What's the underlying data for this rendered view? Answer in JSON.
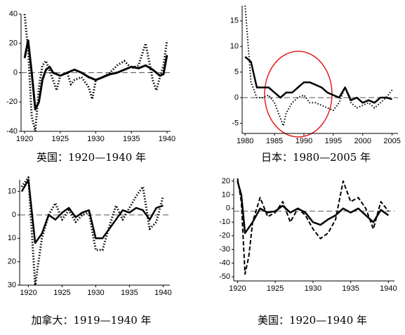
{
  "chart_data": [
    {
      "type": "line",
      "title": "英国：1920—1940 年",
      "xlim": [
        1919.5,
        1940.5
      ],
      "xticks": [
        1920,
        1925,
        1930,
        1935,
        1940
      ],
      "ylim": [
        -40,
        40
      ],
      "yticks": [
        40,
        20,
        0,
        -20,
        -40
      ],
      "hline": 0,
      "series": [
        {
          "color": "#000000",
          "style": "solid",
          "width": 3,
          "x": [
            1920,
            1920.5,
            1921,
            1921.5,
            1922,
            1922.5,
            1923,
            1923.5,
            1924,
            1925,
            1926,
            1927,
            1928,
            1929,
            1930,
            1931,
            1932,
            1933,
            1934,
            1935,
            1936,
            1937,
            1938,
            1939,
            1939.5,
            1940
          ],
          "values": [
            10,
            22,
            0,
            -25,
            -20,
            -5,
            2,
            4,
            0,
            -2,
            0,
            2,
            0,
            -3,
            -5,
            -3,
            -1,
            0,
            2,
            4,
            3,
            5,
            2,
            -2,
            -1,
            12
          ]
        },
        {
          "color": "#000000",
          "style": "dotted",
          "width": 3,
          "x": [
            1920,
            1920.5,
            1921,
            1921.5,
            1922,
            1922.5,
            1923,
            1924,
            1924.5,
            1925,
            1926,
            1926.5,
            1927,
            1928,
            1929,
            1929.5,
            1930,
            1931,
            1932,
            1933,
            1934,
            1935,
            1936,
            1937,
            1938,
            1938.5,
            1939,
            1939.5,
            1940
          ],
          "values": [
            40,
            15,
            -30,
            -40,
            -10,
            5,
            8,
            -5,
            -12,
            -2,
            0,
            -8,
            -5,
            -3,
            -10,
            -18,
            -5,
            -3,
            0,
            5,
            8,
            3,
            5,
            20,
            -5,
            -12,
            -3,
            5,
            22
          ]
        }
      ]
    },
    {
      "type": "line",
      "title": "日本：1980—2005 年",
      "xlim": [
        1979.5,
        2006
      ],
      "xticks": [
        1980,
        1985,
        1990,
        1995,
        2000,
        2005
      ],
      "ylim": [
        -7,
        18
      ],
      "yticks": [
        15,
        10,
        5,
        0,
        -5
      ],
      "hline": 0,
      "series": [
        {
          "color": "#000000",
          "style": "solid",
          "width": 2.5,
          "x": [
            1980,
            1981,
            1982,
            1983,
            1984,
            1985,
            1986,
            1987,
            1988,
            1989,
            1990,
            1991,
            1992,
            1993,
            1994,
            1995,
            1996,
            1997,
            1998,
            1999,
            2000,
            2001,
            2002,
            2003,
            2004,
            2005
          ],
          "values": [
            8,
            7,
            2,
            2,
            2,
            1,
            0,
            1,
            1,
            2,
            3,
            3,
            2.5,
            2,
            1,
            0.5,
            0,
            2,
            -0.5,
            0,
            -1,
            -0.5,
            -1,
            0,
            0,
            -0.3
          ]
        },
        {
          "color": "#000000",
          "style": "dotted",
          "width": 2,
          "x": [
            1980,
            1981,
            1982,
            1983,
            1984,
            1985,
            1986,
            1986.5,
            1987,
            1988,
            1989,
            1990,
            1991,
            1992,
            1993,
            1994,
            1995,
            1996,
            1997,
            1998,
            1999,
            2000,
            2001,
            2002,
            2003,
            2004,
            2005
          ],
          "values": [
            18,
            3,
            0,
            0,
            0.5,
            -1,
            -4,
            -5.5,
            -3,
            -1,
            0,
            0.5,
            -1,
            -1,
            -1.5,
            -2,
            -2.5,
            -1,
            2,
            -1,
            -2,
            -1.5,
            -1,
            -2,
            -1,
            0,
            1.5
          ]
        }
      ]
    },
    {
      "type": "line",
      "title": "加拿大：1919—1940 年",
      "xlim": [
        1918.7,
        1941
      ],
      "xticks": [
        1920,
        1925,
        1930,
        1935,
        1940
      ],
      "ylim": [
        -30,
        15
      ],
      "yticks": [
        10,
        0,
        {
          "value": -10,
          "label": "10"
        },
        {
          "value": -20,
          "label": "20"
        },
        {
          "value": -30,
          "label": "30"
        }
      ],
      "hline": 0,
      "series": [
        {
          "color": "#000000",
          "style": "solid",
          "width": 2.5,
          "x": [
            1919,
            1920,
            1921,
            1922,
            1923,
            1924,
            1925,
            1926,
            1927,
            1928,
            1929,
            1930,
            1931,
            1932,
            1933,
            1934,
            1935,
            1936,
            1937,
            1938,
            1939,
            1940
          ],
          "values": [
            10,
            15,
            -12,
            -8,
            0,
            -2,
            1,
            3,
            -1,
            1,
            2,
            -10,
            -10,
            -6,
            -2,
            2,
            1,
            3,
            2,
            -2,
            3,
            4
          ]
        },
        {
          "color": "#000000",
          "style": "dotted",
          "width": 3,
          "x": [
            1919,
            1920,
            1921,
            1922,
            1923,
            1924,
            1925,
            1926,
            1927,
            1928,
            1929,
            1930,
            1931,
            1932,
            1933,
            1934,
            1935,
            1936,
            1937,
            1938,
            1939,
            1940
          ],
          "values": [
            12,
            16,
            -30,
            -10,
            0,
            5,
            -2,
            2,
            -3,
            0,
            1,
            -15,
            -15,
            -5,
            4,
            -2,
            3,
            8,
            12,
            -6,
            -3,
            8
          ]
        }
      ]
    },
    {
      "type": "line",
      "title": "美国：1920—1940 年",
      "xlim": [
        1919.5,
        1940.8
      ],
      "xticks": [
        1920,
        1925,
        1930,
        1935,
        1940
      ],
      "ylim": [
        -53,
        22
      ],
      "yticks": [
        20,
        10,
        0,
        -10,
        -20,
        -30,
        -40,
        -50
      ],
      "hline": -2,
      "series": [
        {
          "color": "#000000",
          "style": "solid",
          "width": 2.5,
          "x": [
            1920,
            1920.5,
            1921,
            1922,
            1923,
            1924,
            1925,
            1926,
            1927,
            1928,
            1929,
            1930,
            1931,
            1932,
            1933,
            1934,
            1935,
            1936,
            1937,
            1938,
            1939,
            1940
          ],
          "values": [
            20,
            10,
            -18,
            -10,
            0,
            -3,
            -2,
            2,
            -3,
            0,
            -3,
            -10,
            -12,
            -8,
            -5,
            0,
            -3,
            0,
            -5,
            -10,
            -1,
            -5
          ]
        },
        {
          "color": "#000000",
          "style": "dashed",
          "width": 2,
          "x": [
            1920,
            1920.5,
            1921,
            1921.5,
            1922,
            1923,
            1924,
            1925,
            1926,
            1927,
            1928,
            1929,
            1930,
            1931,
            1932,
            1933,
            1934,
            1935,
            1936,
            1937,
            1938,
            1939,
            1940
          ],
          "values": [
            22,
            5,
            -48,
            -35,
            -10,
            8,
            -6,
            -3,
            5,
            -10,
            0,
            -5,
            -15,
            -22,
            -18,
            -8,
            20,
            5,
            8,
            0,
            -15,
            5,
            -2
          ]
        }
      ]
    }
  ]
}
